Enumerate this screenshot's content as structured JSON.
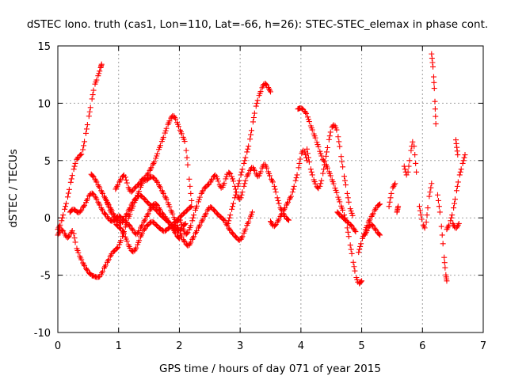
{
  "chart_data": {
    "type": "scatter",
    "title": "dSTEC Iono. truth (cas1, Lon=110, Lat=-66, h=26): STEC-STEC_elemax in phase cont.",
    "xlabel": "GPS time / hours of day 071 of year 2015",
    "ylabel": "dSTEC  / TECUs",
    "xlim": [
      0,
      7
    ],
    "ylim": [
      -10,
      15
    ],
    "xticks": [
      "0",
      "1",
      "2",
      "3",
      "4",
      "5",
      "6",
      "7"
    ],
    "yticks": [
      "-10",
      "-5",
      "0",
      "5",
      "10",
      "15"
    ],
    "grid": true,
    "marker": "plus",
    "color": "#ff0000",
    "series": [
      {
        "x": [
          0.0,
          0.05,
          0.1,
          0.15,
          0.2,
          0.25,
          0.3,
          0.35,
          0.4,
          0.45,
          0.5,
          0.55,
          0.6,
          0.65,
          0.7,
          0.72
        ],
        "y": [
          -1.0,
          -0.5,
          0.5,
          1.5,
          2.8,
          4.0,
          5.0,
          5.4,
          5.6,
          7.0,
          8.5,
          10.0,
          11.5,
          12.2,
          13.0,
          13.4
        ]
      },
      {
        "x": [
          0.0,
          0.05,
          0.1,
          0.15,
          0.2,
          0.25,
          0.3,
          0.35,
          0.4,
          0.45,
          0.5,
          0.55,
          0.6,
          0.65,
          0.7,
          0.75,
          0.8,
          0.85,
          0.9,
          0.95,
          1.0,
          1.05,
          1.1,
          1.15,
          1.2,
          1.25,
          1.3,
          1.35,
          1.4,
          1.45,
          1.5,
          1.55,
          1.6,
          1.65,
          1.7,
          1.75,
          1.8,
          1.85,
          1.9,
          1.95,
          2.0,
          2.05,
          2.1,
          2.15,
          2.2
        ],
        "y": [
          -1.5,
          -1.0,
          -1.2,
          -1.8,
          -1.5,
          -1.0,
          -2.5,
          -3.2,
          -3.8,
          -4.3,
          -4.7,
          -5.0,
          -5.1,
          -5.2,
          -5.1,
          -4.5,
          -4.0,
          -3.5,
          -3.0,
          -2.8,
          -2.5,
          -1.8,
          -1.0,
          -0.2,
          0.5,
          1.2,
          1.8,
          2.5,
          3.2,
          3.6,
          4.0,
          4.5,
          5.0,
          5.8,
          6.5,
          7.2,
          8.0,
          8.6,
          9.0,
          8.5,
          7.8,
          7.2,
          6.5,
          4.0,
          1.5
        ]
      },
      {
        "x": [
          0.2,
          0.25,
          0.3,
          0.35,
          0.4,
          0.45,
          0.5,
          0.55,
          0.6,
          0.65,
          0.7,
          0.75,
          0.8,
          0.85,
          0.9,
          0.95,
          1.0,
          1.05,
          1.1,
          1.15,
          1.2,
          1.25,
          1.3,
          1.35,
          1.4,
          1.45,
          1.5,
          1.55,
          1.6,
          1.65,
          1.7,
          1.75,
          1.8,
          1.85,
          1.9,
          1.95,
          2.0
        ],
        "y": [
          0.5,
          0.8,
          0.6,
          0.4,
          0.8,
          1.2,
          1.8,
          2.2,
          2.0,
          1.5,
          1.0,
          0.5,
          0.2,
          -0.2,
          -0.3,
          -0.1,
          0.2,
          0.0,
          -0.3,
          -0.5,
          -0.8,
          -1.2,
          -1.5,
          -1.0,
          -0.5,
          0.0,
          0.5,
          1.0,
          1.3,
          1.0,
          0.5,
          0.2,
          -0.2,
          -0.5,
          -1.0,
          -1.5,
          -1.8
        ]
      },
      {
        "x": [
          0.55,
          0.6,
          0.65,
          0.7,
          0.75,
          0.8,
          0.85,
          0.9,
          0.95,
          1.0,
          1.05,
          1.1,
          1.15,
          1.2,
          1.25,
          1.3,
          1.35,
          1.4,
          1.45,
          1.5,
          1.55,
          1.6,
          1.65,
          1.7,
          1.75,
          1.8,
          1.85,
          1.9,
          1.95,
          2.0,
          2.05,
          2.1,
          2.15,
          2.2
        ],
        "y": [
          3.8,
          3.5,
          3.0,
          2.5,
          2.0,
          1.5,
          0.8,
          0.2,
          -0.5,
          -0.8,
          -1.0,
          -1.5,
          -2.2,
          -2.8,
          -3.0,
          -2.5,
          -1.8,
          -1.2,
          -0.8,
          -0.5,
          -0.3,
          -0.5,
          -0.8,
          -1.0,
          -1.2,
          -1.0,
          -0.8,
          -0.5,
          -0.3,
          0.0,
          0.3,
          0.5,
          0.8,
          1.0
        ]
      },
      {
        "x": [
          0.8,
          0.85,
          0.9,
          0.95,
          1.0,
          1.05,
          1.1,
          1.15,
          1.2,
          1.25,
          1.3,
          1.35,
          1.4,
          1.45,
          1.5,
          1.55,
          1.6,
          1.65,
          1.7,
          1.75,
          1.8,
          1.85,
          1.9,
          1.95,
          2.0,
          2.05,
          2.1
        ],
        "y": [
          1.5,
          1.0,
          0.5,
          0.0,
          -0.3,
          -0.5,
          0.0,
          0.5,
          1.0,
          1.5,
          1.8,
          2.0,
          1.8,
          1.5,
          1.2,
          1.0,
          0.8,
          0.5,
          0.2,
          0.0,
          -0.3,
          -0.5,
          -0.8,
          -1.0,
          -1.2,
          -0.8,
          -0.5
        ]
      },
      {
        "x": [
          0.95,
          1.0,
          1.05,
          1.1,
          1.15,
          1.2,
          1.25,
          1.3,
          1.35,
          1.4,
          1.45,
          1.5,
          1.55,
          1.6,
          1.65,
          1.7,
          1.75,
          1.8,
          1.85,
          1.9,
          1.95,
          2.0,
          2.05,
          2.1,
          2.15,
          2.2,
          2.25,
          2.3,
          2.35,
          2.4,
          2.45,
          2.5,
          2.55,
          2.6,
          2.65,
          2.7,
          2.75,
          2.8,
          2.85,
          2.9,
          2.95,
          3.0,
          3.05,
          3.1,
          3.15,
          3.2
        ],
        "y": [
          2.5,
          3.0,
          3.5,
          3.8,
          2.8,
          2.2,
          2.5,
          2.8,
          3.0,
          3.5,
          3.2,
          3.5,
          3.6,
          3.4,
          3.0,
          2.5,
          2.0,
          1.5,
          0.8,
          0.2,
          -0.5,
          -1.2,
          -1.8,
          -2.2,
          -2.5,
          -2.0,
          -1.5,
          -1.0,
          -0.5,
          0.0,
          0.5,
          1.0,
          0.8,
          0.5,
          0.2,
          0.0,
          -0.3,
          -0.8,
          -1.2,
          -1.5,
          -1.8,
          -2.0,
          -1.5,
          -0.8,
          -0.2,
          0.5
        ]
      },
      {
        "x": [
          1.9,
          1.95,
          2.0,
          2.05,
          2.1,
          2.15,
          2.2,
          2.25,
          2.3,
          2.35,
          2.4,
          2.45,
          2.5,
          2.55,
          2.6,
          2.65,
          2.7,
          2.75,
          2.8,
          2.85,
          2.9,
          2.95,
          3.0,
          3.05,
          3.1,
          3.15,
          3.2,
          3.25,
          3.3,
          3.35,
          3.4,
          3.45,
          3.5,
          3.55,
          3.6,
          3.65,
          3.7,
          3.75,
          3.8
        ],
        "y": [
          -1.0,
          -0.5,
          0.0,
          -0.8,
          -1.5,
          -1.2,
          -0.5,
          0.5,
          1.2,
          2.0,
          2.5,
          2.8,
          3.0,
          3.5,
          3.8,
          3.0,
          2.5,
          3.2,
          4.0,
          3.8,
          3.0,
          2.0,
          1.5,
          2.5,
          3.5,
          4.0,
          4.5,
          4.0,
          3.5,
          4.2,
          4.8,
          4.2,
          3.5,
          3.0,
          2.0,
          1.0,
          0.5,
          0.0,
          -0.2
        ]
      },
      {
        "x": [
          2.8,
          2.85,
          2.9,
          2.95,
          3.0,
          3.05,
          3.1,
          3.15,
          3.2,
          3.25,
          3.3,
          3.35,
          3.4,
          3.45,
          3.5
        ],
        "y": [
          -0.5,
          0.5,
          1.5,
          2.5,
          3.5,
          4.5,
          5.5,
          6.5,
          8.0,
          9.5,
          10.5,
          11.2,
          11.8,
          11.5,
          11.0
        ]
      },
      {
        "x": [
          3.5,
          3.55,
          3.6,
          3.65,
          3.7,
          3.75,
          3.8,
          3.85,
          3.9,
          3.95,
          4.0,
          4.05,
          4.1
        ],
        "y": [
          -0.3,
          -0.8,
          -0.5,
          0.0,
          0.5,
          1.0,
          1.5,
          2.0,
          3.0,
          4.0,
          5.5,
          6.0,
          5.0
        ]
      },
      {
        "x": [
          3.95,
          4.0,
          4.05,
          4.1,
          4.15,
          4.2,
          4.25,
          4.3,
          4.35,
          4.4,
          4.45,
          4.5,
          4.55,
          4.6,
          4.65,
          4.7,
          4.75,
          4.8,
          4.85,
          4.9,
          4.95,
          5.0
        ],
        "y": [
          9.5,
          9.6,
          9.4,
          9.0,
          8.2,
          7.5,
          6.8,
          6.0,
          5.2,
          4.8,
          4.2,
          3.5,
          2.8,
          2.0,
          1.2,
          0.5,
          -0.5,
          -2.0,
          -3.5,
          -5.0,
          -5.8,
          -5.5
        ]
      },
      {
        "x": [
          4.1,
          4.15,
          4.2,
          4.25,
          4.3,
          4.35,
          4.4,
          4.45,
          4.5,
          4.55,
          4.6,
          4.65,
          4.7,
          4.75,
          4.8,
          4.85
        ],
        "y": [
          6.0,
          4.5,
          3.5,
          2.8,
          2.5,
          3.5,
          5.0,
          6.5,
          7.8,
          8.2,
          7.5,
          5.8,
          4.0,
          2.5,
          1.0,
          0.2
        ]
      },
      {
        "x": [
          4.6,
          4.65,
          4.7,
          4.75,
          4.8,
          4.85,
          4.9
        ],
        "y": [
          0.5,
          0.2,
          0.0,
          -0.3,
          -0.5,
          -0.8,
          -1.2
        ]
      },
      {
        "x": [
          4.95,
          5.0,
          5.05,
          5.1,
          5.15,
          5.2,
          5.25,
          5.3
        ],
        "y": [
          -3.0,
          -2.0,
          -1.2,
          -0.5,
          0.0,
          0.5,
          1.0,
          1.2
        ]
      },
      {
        "x": [
          5.05,
          5.1,
          5.15,
          5.2,
          5.25,
          5.3
        ],
        "y": [
          -1.5,
          -1.0,
          -0.5,
          -0.8,
          -1.2,
          -1.5
        ]
      },
      {
        "x": [
          5.45,
          5.5,
          5.55
        ],
        "y": [
          1.0,
          2.5,
          3.0
        ]
      },
      {
        "x": [
          5.58,
          5.6
        ],
        "y": [
          0.5,
          1.0
        ]
      },
      {
        "x": [
          5.7,
          5.75,
          5.8,
          5.85,
          5.9
        ],
        "y": [
          4.5,
          3.5,
          5.5,
          7.0,
          4.0
        ]
      },
      {
        "x": [
          5.95,
          6.0,
          6.05,
          6.1,
          6.15
        ],
        "y": [
          1.0,
          -0.5,
          -1.0,
          1.5,
          3.0
        ]
      },
      {
        "x": [
          6.15,
          6.18,
          6.2,
          6.22
        ],
        "y": [
          14.3,
          12.8,
          10.8,
          8.2
        ]
      },
      {
        "x": [
          6.25,
          6.3,
          6.35,
          6.38,
          6.4
        ],
        "y": [
          2.0,
          0.0,
          -3.0,
          -4.8,
          -5.5
        ]
      },
      {
        "x": [
          6.4,
          6.45,
          6.5,
          6.55,
          6.6,
          6.65,
          6.7
        ],
        "y": [
          -1.0,
          -0.5,
          0.5,
          2.0,
          3.5,
          4.5,
          5.5
        ]
      },
      {
        "x": [
          6.5,
          6.55,
          6.6
        ],
        "y": [
          -0.5,
          -1.0,
          -0.5
        ]
      },
      {
        "x": [
          6.55,
          6.58
        ],
        "y": [
          6.8,
          5.5
        ]
      }
    ]
  }
}
